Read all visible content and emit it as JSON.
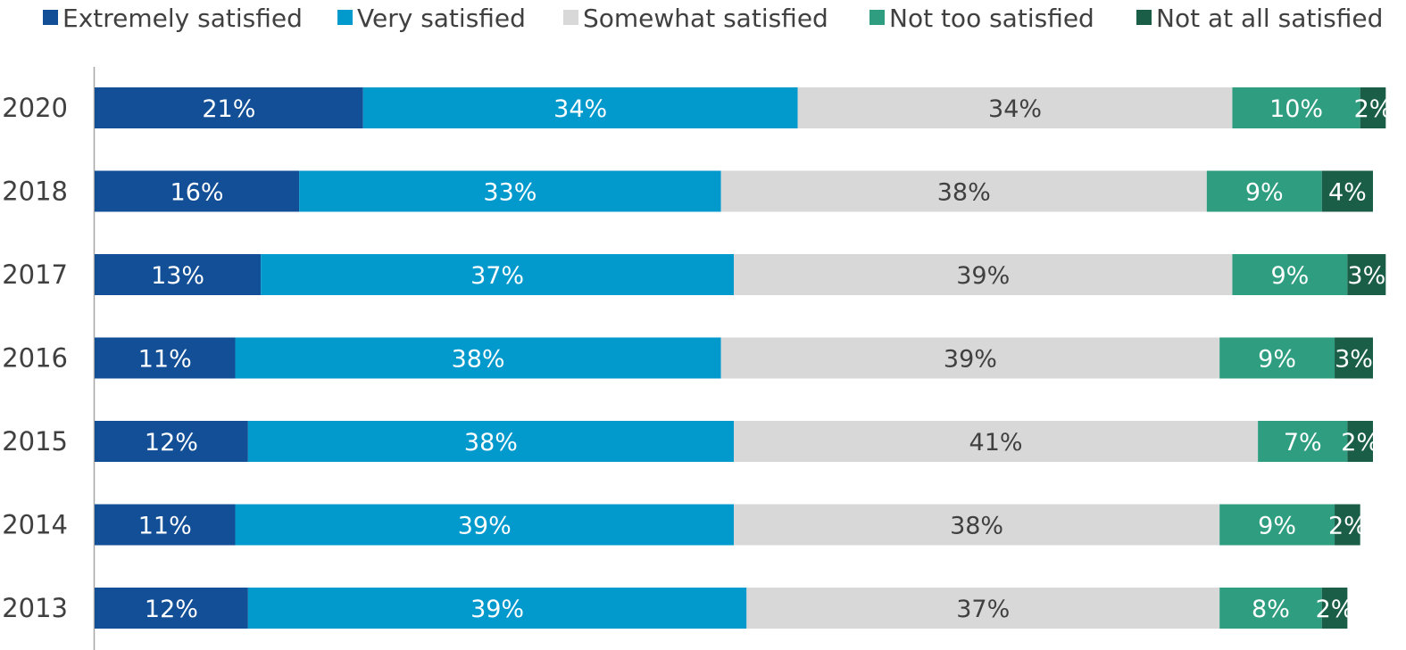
{
  "chart_data": {
    "type": "bar",
    "orientation": "horizontal",
    "stacked": true,
    "categories": [
      "2020",
      "2018",
      "2017",
      "2016",
      "2015",
      "2014",
      "2013"
    ],
    "series": [
      {
        "name": "Extremely satisfied",
        "color": "#124f97",
        "label_color": "#ffffff",
        "values": [
          21,
          16,
          13,
          11,
          12,
          11,
          12
        ]
      },
      {
        "name": "Very satisfied",
        "color": "#0299cd",
        "label_color": "#ffffff",
        "values": [
          34,
          33,
          37,
          38,
          38,
          39,
          39
        ]
      },
      {
        "name": "Somewhat satisfied",
        "color": "#d8d8d8",
        "label_color": "#404040",
        "values": [
          34,
          38,
          39,
          39,
          41,
          38,
          37
        ]
      },
      {
        "name": "Not too satisfied",
        "color": "#2f9e80",
        "label_color": "#ffffff",
        "values": [
          10,
          9,
          9,
          9,
          7,
          9,
          8
        ]
      },
      {
        "name": "Not at all satisfied",
        "color": "#1b5e48",
        "label_color": "#ffffff",
        "values": [
          2,
          4,
          3,
          3,
          2,
          2,
          2
        ]
      }
    ],
    "value_suffix": "%",
    "xlim": [
      0,
      100
    ],
    "grid": false,
    "legend": "top"
  }
}
